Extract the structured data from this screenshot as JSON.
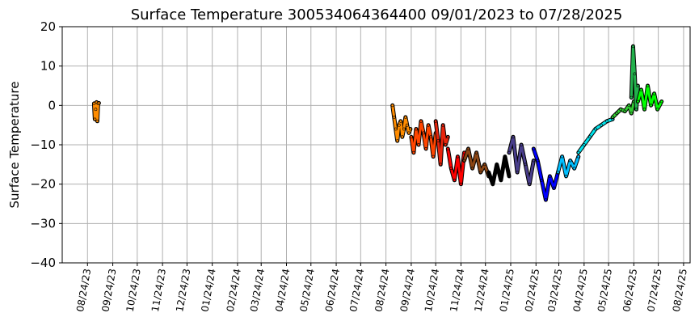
{
  "chart_data": {
    "type": "line",
    "title": "Surface Temperature 300534064364400  09/01/2023 to 07/28/2025",
    "xlabel": "",
    "ylabel": "Surface Temperature",
    "ylim": [
      -40,
      20
    ],
    "yticks": [
      20,
      10,
      0,
      -10,
      -20,
      -30,
      -40
    ],
    "xlim": [
      "2023-07-24",
      "2025-09-01"
    ],
    "xticks": [
      "2023-08-24",
      "2023-09-24",
      "2023-10-24",
      "2023-11-24",
      "2023-12-24",
      "2024-01-24",
      "2024-02-24",
      "2024-03-24",
      "2024-04-24",
      "2024-05-24",
      "2024-06-24",
      "2024-07-24",
      "2024-08-24",
      "2024-09-24",
      "2024-10-24",
      "2024-11-24",
      "2024-12-24",
      "2025-01-24",
      "2025-02-24",
      "2025-03-24",
      "2025-04-24",
      "2025-05-24",
      "2025-06-24",
      "2025-07-24",
      "2025-08-24"
    ],
    "xtick_labels": [
      "08/24/23",
      "09/24/23",
      "10/24/23",
      "11/24/23",
      "12/24/23",
      "01/24/24",
      "02/24/24",
      "03/24/24",
      "04/24/24",
      "05/24/24",
      "06/24/24",
      "07/24/24",
      "08/24/24",
      "09/24/24",
      "10/24/24",
      "11/24/24",
      "12/24/24",
      "01/24/25",
      "02/24/25",
      "03/24/25",
      "04/24/25",
      "05/24/25",
      "06/24/25",
      "07/24/25",
      "08/24/25"
    ],
    "grid": true,
    "series": [
      {
        "color": "#ff8c00",
        "x": [
          "2023-09-01",
          "2023-09-02",
          "2023-09-03",
          "2023-09-04",
          "2023-09-05",
          "2023-09-06",
          "2023-09-07"
        ],
        "y": [
          0.5,
          -3.5,
          -1.0,
          0.8,
          -4.0,
          0.5,
          0.6
        ]
      },
      {
        "color": "#ff8c00",
        "x": [
          "2024-09-01",
          "2024-09-03",
          "2024-09-05",
          "2024-09-07",
          "2024-09-09",
          "2024-09-11",
          "2024-09-13",
          "2024-09-15",
          "2024-09-17",
          "2024-09-19",
          "2024-09-21",
          "2024-09-23"
        ],
        "y": [
          0,
          -3,
          -6,
          -9,
          -5,
          -4,
          -8,
          -6,
          -3,
          -5,
          -7,
          -6
        ]
      },
      {
        "color": "#ff4500",
        "x": [
          "2024-09-24",
          "2024-09-27",
          "2024-09-30",
          "2024-10-03",
          "2024-10-06",
          "2024-10-09",
          "2024-10-12",
          "2024-10-15",
          "2024-10-18",
          "2024-10-21",
          "2024-10-24"
        ],
        "y": [
          -8,
          -12,
          -6,
          -10,
          -4,
          -7,
          -11,
          -5,
          -8,
          -13,
          -7
        ]
      },
      {
        "color": "#e8240c",
        "x": [
          "2024-10-24",
          "2024-10-27",
          "2024-10-30",
          "2024-11-02",
          "2024-11-05",
          "2024-11-08"
        ],
        "y": [
          -4,
          -9,
          -15,
          -5,
          -10,
          -8
        ]
      },
      {
        "color": "#ff0000",
        "x": [
          "2024-11-08",
          "2024-11-12",
          "2024-11-16",
          "2024-11-20",
          "2024-11-24",
          "2024-11-28"
        ],
        "y": [
          -11,
          -16,
          -19,
          -13,
          -20,
          -12
        ]
      },
      {
        "color": "#8b4513",
        "x": [
          "2024-11-28",
          "2024-12-03",
          "2024-12-08",
          "2024-12-13",
          "2024-12-18",
          "2024-12-23",
          "2024-12-28"
        ],
        "y": [
          -14,
          -11,
          -16,
          -12,
          -17,
          -15,
          -18
        ]
      },
      {
        "color": "#000000",
        "x": [
          "2024-12-28",
          "2025-01-02",
          "2025-01-07",
          "2025-01-12",
          "2025-01-17",
          "2025-01-22"
        ],
        "y": [
          -17,
          -20,
          -15,
          -19,
          -13,
          -18
        ]
      },
      {
        "color": "#483d8b",
        "x": [
          "2025-01-22",
          "2025-01-27",
          "2025-02-01",
          "2025-02-06",
          "2025-02-11",
          "2025-02-16",
          "2025-02-21"
        ],
        "y": [
          -12,
          -8,
          -17,
          -10,
          -15,
          -20,
          -14
        ]
      },
      {
        "color": "#0000ff",
        "x": [
          "2025-02-21",
          "2025-02-26",
          "2025-03-03",
          "2025-03-08",
          "2025-03-13",
          "2025-03-18",
          "2025-03-23"
        ],
        "y": [
          -11,
          -14,
          -19,
          -24,
          -18,
          -21,
          -17
        ]
      },
      {
        "color": "#00bfff",
        "x": [
          "2025-03-23",
          "2025-03-28",
          "2025-04-02",
          "2025-04-07",
          "2025-04-12",
          "2025-04-17"
        ],
        "y": [
          -17,
          -13,
          -18,
          -14,
          -16,
          -13
        ]
      },
      {
        "color": "#00e5ee",
        "x": [
          "2025-04-17",
          "2025-04-24",
          "2025-05-01",
          "2025-05-08",
          "2025-05-15",
          "2025-05-22",
          "2025-05-29"
        ],
        "y": [
          -12,
          -10,
          -8,
          -6,
          -5,
          -4,
          -3.5
        ]
      },
      {
        "color": "#32cd32",
        "x": [
          "2025-05-29",
          "2025-06-03",
          "2025-06-08",
          "2025-06-13",
          "2025-06-18",
          "2025-06-21",
          "2025-06-24"
        ],
        "y": [
          -3,
          -2,
          -1,
          -1.5,
          0,
          -2,
          1
        ]
      },
      {
        "color": "#22b14c",
        "x": [
          "2025-06-21",
          "2025-06-23",
          "2025-06-25",
          "2025-06-27",
          "2025-06-29"
        ],
        "y": [
          2,
          15,
          8,
          -1,
          5
        ]
      },
      {
        "color": "#00ff00",
        "x": [
          "2025-06-29",
          "2025-07-03",
          "2025-07-07",
          "2025-07-11",
          "2025-07-15",
          "2025-07-19",
          "2025-07-23",
          "2025-07-28"
        ],
        "y": [
          1,
          4,
          -1,
          5,
          0,
          3,
          -1,
          1
        ]
      }
    ]
  }
}
